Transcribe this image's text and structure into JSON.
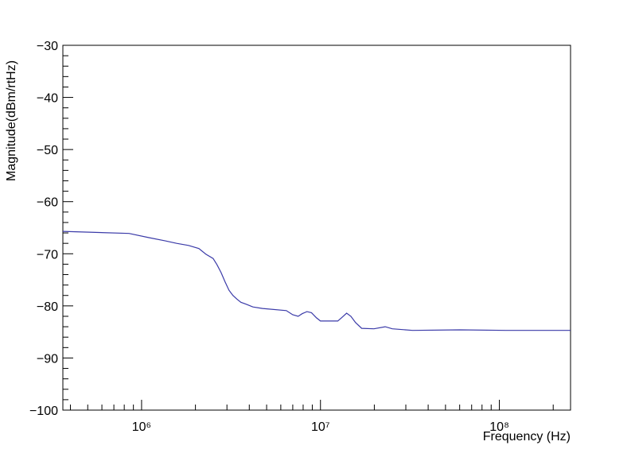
{
  "chart_data": {
    "type": "line",
    "x_label": "Frequency (Hz)",
    "y_label": "Magnitude(dBm/rtHz)",
    "xscale": "log",
    "color": "#3a3aa8",
    "xlim": [
      363000,
      250000000
    ],
    "xticks": [
      {
        "value": 1000000,
        "label": "10⁶"
      },
      {
        "value": 10000000,
        "label": "10⁷"
      },
      {
        "value": 100000000,
        "label": "10⁸"
      }
    ],
    "ylim": [
      -100,
      -30
    ],
    "yticks": [
      {
        "value": -100,
        "label": "−100"
      },
      {
        "value": -90,
        "label": "−90"
      },
      {
        "value": -80,
        "label": "−80"
      },
      {
        "value": -70,
        "label": "−70"
      },
      {
        "value": -60,
        "label": "−60"
      },
      {
        "value": -50,
        "label": "−50"
      },
      {
        "value": -40,
        "label": "−40"
      },
      {
        "value": -30,
        "label": "−30"
      }
    ],
    "x": [
      363000,
      850000,
      1100000,
      1350000,
      1570000,
      1830000,
      2090000,
      2290000,
      2510000,
      2640000,
      2780000,
      2930000,
      3080000,
      3240000,
      3410000,
      3590000,
      3860000,
      4190000,
      4740000,
      6440000,
      6990000,
      7500000,
      7900000,
      8400000,
      8900000,
      9500000,
      10000000,
      12500000,
      13100000,
      14000000,
      14800000,
      15700000,
      17000000,
      19900000,
      23000000,
      25200000,
      32700000,
      60000000,
      110000000,
      250000000
    ],
    "values": [
      -65.7,
      -66.1,
      -66.9,
      -67.5,
      -68.0,
      -68.4,
      -69.0,
      -70.1,
      -70.9,
      -72.1,
      -73.6,
      -75.4,
      -77.0,
      -78.0,
      -78.7,
      -79.3,
      -79.7,
      -80.2,
      -80.5,
      -80.9,
      -81.7,
      -82.0,
      -81.5,
      -81.1,
      -81.3,
      -82.3,
      -82.9,
      -82.9,
      -82.3,
      -81.4,
      -82.0,
      -83.2,
      -84.3,
      -84.4,
      -84.0,
      -84.4,
      -84.7,
      -84.6,
      -84.7,
      -84.7
    ]
  }
}
